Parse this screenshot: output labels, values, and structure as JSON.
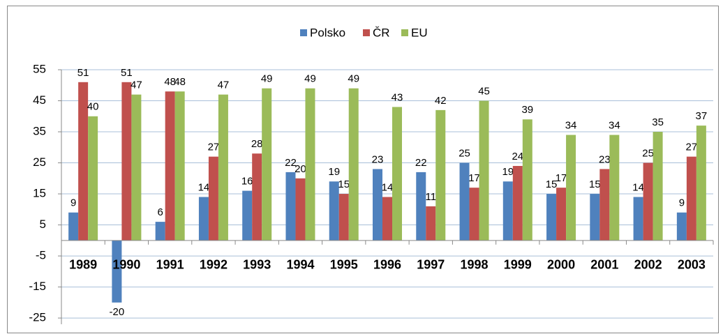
{
  "chart_data": {
    "type": "bar",
    "categories": [
      "1989",
      "1990",
      "1991",
      "1992",
      "1993",
      "1994",
      "1995",
      "1996",
      "1997",
      "1998",
      "1999",
      "2000",
      "2001",
      "2002",
      "2003"
    ],
    "series": [
      {
        "name": "Polsko",
        "color": "#4f81bd",
        "values": [
          9,
          -20,
          6,
          14,
          16,
          22,
          19,
          23,
          22,
          25,
          19,
          15,
          15,
          14,
          9
        ]
      },
      {
        "name": "ČR",
        "color": "#c0504d",
        "values": [
          51,
          51,
          48,
          27,
          28,
          20,
          15,
          14,
          11,
          17,
          24,
          17,
          23,
          25,
          27
        ]
      },
      {
        "name": "EU",
        "color": "#9bbb59",
        "values": [
          40,
          47,
          48,
          47,
          49,
          49,
          49,
          43,
          42,
          45,
          39,
          34,
          34,
          35,
          37
        ]
      }
    ],
    "ylim": [
      -27,
      55
    ],
    "yticks": [
      55,
      45,
      35,
      25,
      15,
      5,
      -5,
      -15,
      -25
    ],
    "grid": true,
    "legend": "top"
  }
}
